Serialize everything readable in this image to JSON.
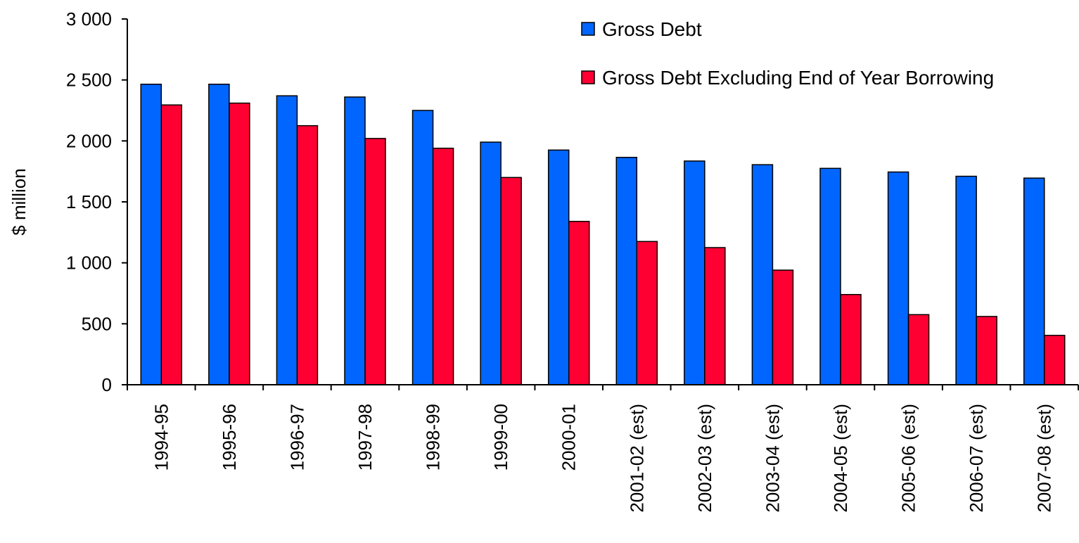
{
  "chart_data": {
    "type": "bar",
    "title": "",
    "xlabel": "",
    "ylabel": "$ million",
    "ylim": [
      0,
      3000
    ],
    "yticks": [
      0,
      500,
      1000,
      1500,
      2000,
      2500,
      3000
    ],
    "ytick_labels": [
      "0",
      "500",
      "1 000",
      "1 500",
      "2 000",
      "2 500",
      "3 000"
    ],
    "grid": false,
    "legend_position": "top-right",
    "categories": [
      "1994-95",
      "1995-96",
      "1996-97",
      "1997-98",
      "1998-99",
      "1999-00",
      "2000-01",
      "2001-02 (est)",
      "2002-03 (est)",
      "2003-04 (est)",
      "2004-05 (est)",
      "2005-06 (est)",
      "2006-07 (est)",
      "2007-08 (est)"
    ],
    "series": [
      {
        "name": "Gross Debt",
        "color": "#0066FF",
        "values": [
          2465,
          2465,
          2370,
          2360,
          2250,
          1990,
          1925,
          1865,
          1835,
          1805,
          1775,
          1745,
          1710,
          1695
        ]
      },
      {
        "name": "Gross Debt Excluding End of Year Borrowing",
        "color": "#FF0033",
        "values": [
          2295,
          2310,
          2125,
          2020,
          1940,
          1700,
          1340,
          1175,
          1125,
          940,
          740,
          575,
          560,
          405
        ]
      }
    ]
  }
}
